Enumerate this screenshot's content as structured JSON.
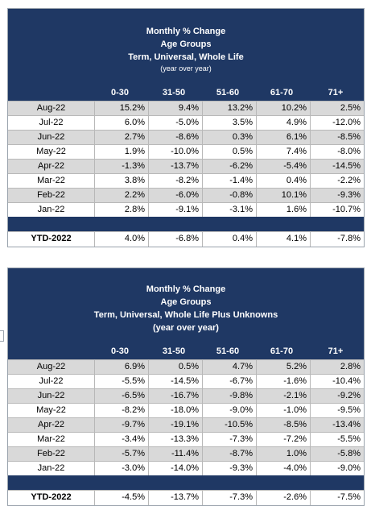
{
  "columns": [
    "0-30",
    "31-50",
    "51-60",
    "61-70",
    "71+"
  ],
  "table1": {
    "title": "Monthly % Change",
    "subtitle1": "Age Groups",
    "subtitle2": "Term, Universal, Whole Life",
    "subtitle3": "(year over year)",
    "rows": [
      {
        "label": "Aug-22",
        "values": [
          "15.2%",
          "9.4%",
          "13.2%",
          "10.2%",
          "2.5%"
        ]
      },
      {
        "label": "Jul-22",
        "values": [
          "6.0%",
          "-5.0%",
          "3.5%",
          "4.9%",
          "-12.0%"
        ]
      },
      {
        "label": "Jun-22",
        "values": [
          "2.7%",
          "-8.6%",
          "0.3%",
          "6.1%",
          "-8.5%"
        ]
      },
      {
        "label": "May-22",
        "values": [
          "1.9%",
          "-10.0%",
          "0.5%",
          "7.4%",
          "-8.0%"
        ]
      },
      {
        "label": "Apr-22",
        "values": [
          "-1.3%",
          "-13.7%",
          "-6.2%",
          "-5.4%",
          "-14.5%"
        ]
      },
      {
        "label": "Mar-22",
        "values": [
          "3.8%",
          "-8.2%",
          "-1.4%",
          "0.4%",
          "-2.2%"
        ]
      },
      {
        "label": "Feb-22",
        "values": [
          "2.2%",
          "-6.0%",
          "-0.8%",
          "10.1%",
          "-9.3%"
        ]
      },
      {
        "label": "Jan-22",
        "values": [
          "2.8%",
          "-9.1%",
          "-3.1%",
          "1.6%",
          "-10.7%"
        ]
      }
    ],
    "ytd": {
      "label": "YTD-2022",
      "values": [
        "4.0%",
        "-6.8%",
        "0.4%",
        "4.1%",
        "-7.8%"
      ]
    }
  },
  "table2": {
    "title": "Monthly % Change",
    "subtitle1": "Age Groups",
    "subtitle2": "Term, Universal, Whole Life Plus Unknowns",
    "subtitle3": "(year over year)",
    "rows": [
      {
        "label": "Aug-22",
        "values": [
          "6.9%",
          "0.5%",
          "4.7%",
          "5.2%",
          "2.8%"
        ]
      },
      {
        "label": "Jul-22",
        "values": [
          "-5.5%",
          "-14.5%",
          "-6.7%",
          "-1.6%",
          "-10.4%"
        ]
      },
      {
        "label": "Jun-22",
        "values": [
          "-6.5%",
          "-16.7%",
          "-9.8%",
          "-2.1%",
          "-9.2%"
        ]
      },
      {
        "label": "May-22",
        "values": [
          "-8.2%",
          "-18.0%",
          "-9.0%",
          "-1.0%",
          "-9.5%"
        ]
      },
      {
        "label": "Apr-22",
        "values": [
          "-9.7%",
          "-19.1%",
          "-10.5%",
          "-8.5%",
          "-13.4%"
        ]
      },
      {
        "label": "Mar-22",
        "values": [
          "-3.4%",
          "-13.3%",
          "-7.3%",
          "-7.2%",
          "-5.5%"
        ]
      },
      {
        "label": "Feb-22",
        "values": [
          "-5.7%",
          "-11.4%",
          "-8.7%",
          "1.0%",
          "-5.8%"
        ]
      },
      {
        "label": "Jan-22",
        "values": [
          "-3.0%",
          "-14.0%",
          "-9.3%",
          "-4.0%",
          "-9.0%"
        ]
      }
    ],
    "ytd": {
      "label": "YTD-2022",
      "values": [
        "-4.5%",
        "-13.7%",
        "-7.3%",
        "-2.6%",
        "-7.5%"
      ]
    }
  }
}
